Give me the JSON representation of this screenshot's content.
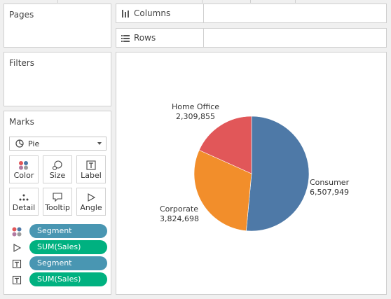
{
  "pages": {
    "title": "Pages"
  },
  "filters": {
    "title": "Filters"
  },
  "shelves": {
    "columns": {
      "label": "Columns"
    },
    "rows": {
      "label": "Rows"
    }
  },
  "marks": {
    "title": "Marks",
    "mark_type": "Pie",
    "buttons": {
      "color": "Color",
      "size": "Size",
      "label": "Label",
      "detail": "Detail",
      "tooltip": "Tooltip",
      "angle": "Angle"
    },
    "pills": [
      {
        "encoding": "color",
        "field": "Segment"
      },
      {
        "encoding": "angle",
        "field": "SUM(Sales)"
      },
      {
        "encoding": "label",
        "field": "Segment"
      },
      {
        "encoding": "label",
        "field": "SUM(Sales)"
      }
    ]
  },
  "colors": {
    "consumer": "#4e79a7",
    "corporate": "#f28e2b",
    "home_office": "#e15759",
    "dimension_pill": "#4996b2",
    "measure_pill": "#00b180"
  },
  "chart_data": {
    "type": "pie",
    "title": "",
    "slices": [
      {
        "label": "Consumer",
        "display": "6,507,949",
        "value": 6507949
      },
      {
        "label": "Corporate",
        "display": "3,824,698",
        "value": 3824698
      },
      {
        "label": "Home Office",
        "display": "2,309,855",
        "value": 2309855
      }
    ]
  }
}
